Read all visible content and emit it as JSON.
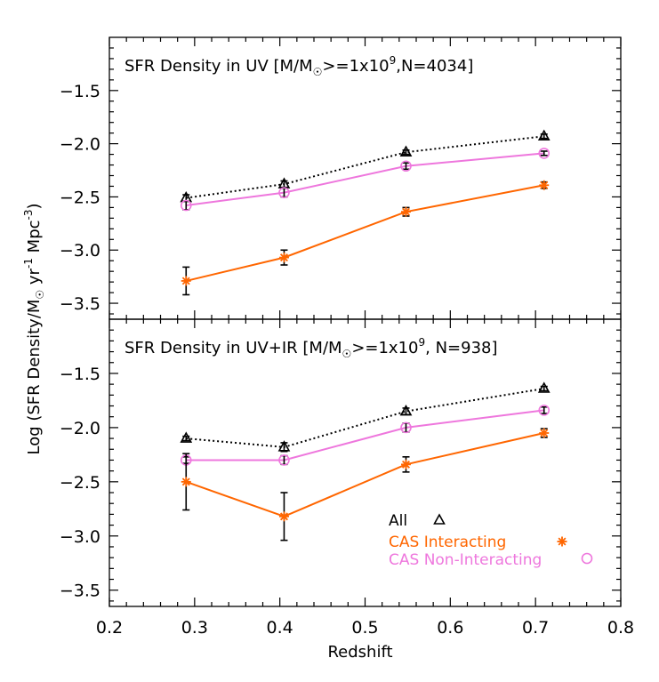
{
  "colors": {
    "all": "#000000",
    "interacting": "#ff6600",
    "non_interacting": "#ee77dd",
    "axis": "#000000"
  },
  "x_title": "Redshift",
  "y_title": {
    "prefix": "Log (SFR Density/M",
    "middle": " yr",
    "exp1": "-1",
    "end": " Mpc",
    "exp2": "-3",
    "close": ")"
  },
  "legend": [
    {
      "label": "All",
      "series": "all",
      "marker": "triangle"
    },
    {
      "label": "CAS Interacting",
      "series": "interacting",
      "marker": "asterisk"
    },
    {
      "label": "CAS Non-Interacting",
      "series": "non_interacting",
      "marker": "circle"
    }
  ],
  "chart_data": [
    {
      "type": "line",
      "title_parts": {
        "a": "SFR Density in UV  [M/M",
        "b": ">=1x10",
        "exp": "9",
        "c": ",N=4034]"
      },
      "x": [
        0.29,
        0.405,
        0.548,
        0.71
      ],
      "xlim": [
        0.2,
        0.8
      ],
      "ylim": [
        -3.65,
        -1.0
      ],
      "x_ticks": [
        0.2,
        0.3,
        0.4,
        0.5,
        0.6,
        0.7,
        0.8
      ],
      "y_ticks": [
        -3.5,
        -3.0,
        -2.5,
        -2.0,
        -1.5
      ],
      "series": [
        {
          "key": "all",
          "marker": "triangle",
          "line": "dotted",
          "values": [
            -2.51,
            -2.38,
            -2.08,
            -1.93
          ],
          "err": [
            0.03,
            0.03,
            0.02,
            0.02
          ]
        },
        {
          "key": "non_interacting",
          "marker": "circle",
          "line": "solid",
          "values": [
            -2.58,
            -2.46,
            -2.21,
            -2.09
          ],
          "err": [
            0.04,
            0.04,
            0.03,
            0.02
          ]
        },
        {
          "key": "interacting",
          "marker": "asterisk",
          "line": "solid",
          "values": [
            -3.29,
            -3.07,
            -2.64,
            -2.39
          ],
          "err": [
            0.13,
            0.07,
            0.04,
            0.03
          ]
        }
      ]
    },
    {
      "type": "line",
      "title_parts": {
        "a": "SFR Density in UV+IR   [M/M",
        "b": ">=1x10",
        "exp": "9",
        "c": ", N=938]"
      },
      "x": [
        0.29,
        0.405,
        0.548,
        0.71
      ],
      "xlim": [
        0.2,
        0.8
      ],
      "ylim": [
        -3.65,
        -1.0
      ],
      "x_ticks": [
        0.2,
        0.3,
        0.4,
        0.5,
        0.6,
        0.7,
        0.8
      ],
      "x_tick_labels": [
        "0.2",
        "0.3",
        "0.4",
        "0.5",
        "0.6",
        "0.7",
        "0.8"
      ],
      "y_ticks": [
        -3.5,
        -3.0,
        -2.5,
        -2.0,
        -1.5
      ],
      "series": [
        {
          "key": "all",
          "marker": "triangle",
          "line": "dotted",
          "values": [
            -2.1,
            -2.18,
            -1.85,
            -1.64
          ],
          "err": [
            0.02,
            0.04,
            0.03,
            0.02
          ]
        },
        {
          "key": "non_interacting",
          "marker": "circle",
          "line": "solid",
          "values": [
            -2.3,
            -2.3,
            -2.0,
            -1.84
          ],
          "err": [
            0.03,
            0.04,
            0.04,
            0.03
          ]
        },
        {
          "key": "interacting",
          "marker": "asterisk",
          "line": "solid",
          "values": [
            -2.5,
            -2.82,
            -2.34,
            -2.05
          ],
          "err": [
            0.26,
            0.22,
            0.07,
            0.04
          ]
        }
      ]
    }
  ]
}
